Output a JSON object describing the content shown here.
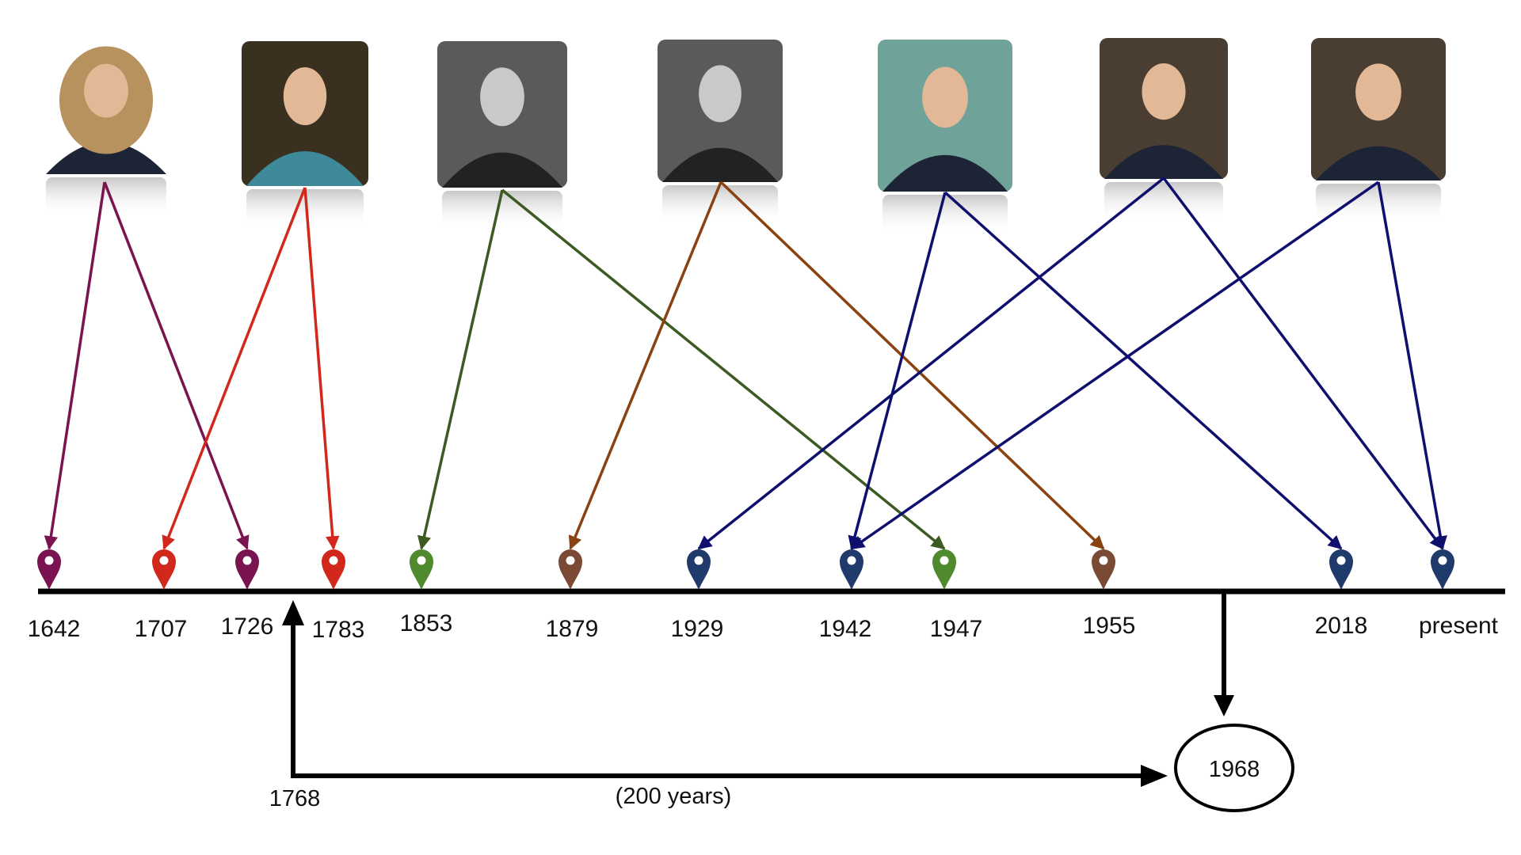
{
  "timeline": {
    "years": [
      {
        "label": "1642",
        "color": "#7a1450"
      },
      {
        "label": "1707",
        "color": "#d2281c"
      },
      {
        "label": "1726",
        "color": "#7a1450"
      },
      {
        "label": "1783",
        "color": "#d2281c"
      },
      {
        "label": "1853",
        "color": "#4f8a2e"
      },
      {
        "label": "1879",
        "color": "#7a4a35"
      },
      {
        "label": "1929",
        "color": "#1f3a6b"
      },
      {
        "label": "1942",
        "color": "#1f3a6b"
      },
      {
        "label": "1947",
        "color": "#4f8a2e"
      },
      {
        "label": "1955",
        "color": "#7a4a35"
      },
      {
        "label": "2018",
        "color": "#1f3a6b"
      },
      {
        "label": "present",
        "color": "#1f3a6b"
      }
    ]
  },
  "scientists": [
    {
      "photo": "portrait-wig",
      "color": "#7a1450",
      "birth": "1642",
      "death": "1726"
    },
    {
      "photo": "portrait-turban",
      "color": "#d2281c",
      "birth": "1707",
      "death": "1783"
    },
    {
      "photo": "portrait-bw-standing",
      "color": "#3d5a22",
      "birth": "1853",
      "death": "1947"
    },
    {
      "photo": "portrait-bw-hair",
      "color": "#8a4210",
      "birth": "1879",
      "death": "1955"
    },
    {
      "photo": "portrait-glasses",
      "color": "#0f0f6e",
      "birth": "1942",
      "death": "2018"
    },
    {
      "photo": "portrait-elder",
      "color": "#0f0f6e",
      "birth": "1929",
      "death": "present"
    },
    {
      "photo": "portrait-suit",
      "color": "#0f0f6e",
      "birth": "1942",
      "death": "present"
    }
  ],
  "span": {
    "start_label": "1768",
    "end_label": "1968",
    "duration_label": "(200 years)"
  }
}
